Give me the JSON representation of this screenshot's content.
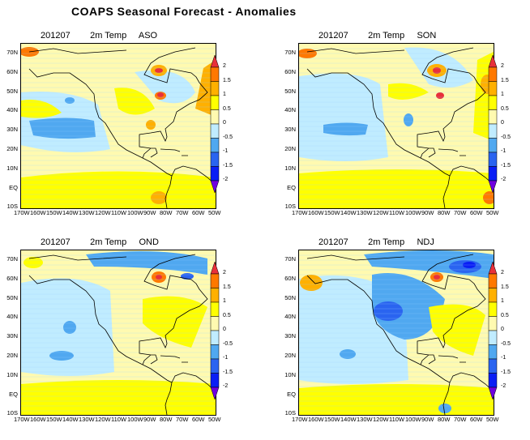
{
  "title": "COAPS Seasonal Forecast - Anomalies",
  "panels": [
    {
      "date": "201207",
      "variable": "2m Temp",
      "season": "ASO"
    },
    {
      "date": "201207",
      "variable": "2m Temp",
      "season": "SON"
    },
    {
      "date": "201207",
      "variable": "2m Temp",
      "season": "OND"
    },
    {
      "date": "201207",
      "variable": "2m Temp",
      "season": "NDJ"
    }
  ],
  "lat_labels": [
    "70N",
    "60N",
    "50N",
    "40N",
    "30N",
    "20N",
    "10N",
    "EQ",
    "10S"
  ],
  "lon_labels": [
    "170W",
    "160W",
    "150W",
    "140W",
    "130W",
    "120W",
    "110W",
    "100W",
    "90W",
    "80W",
    "70W",
    "60W",
    "50W"
  ],
  "colorbar": {
    "labels": [
      "2",
      "1.5",
      "1",
      "0.5",
      "0",
      "-0.5",
      "-1",
      "-1.5",
      "-2"
    ],
    "colors": [
      "#e8303a",
      "#ff7800",
      "#ffb000",
      "#ffff00",
      "#fffab0",
      "#c0ecff",
      "#50a8f0",
      "#2a64f0",
      "#0a1ef5",
      "#7000e0"
    ]
  }
}
